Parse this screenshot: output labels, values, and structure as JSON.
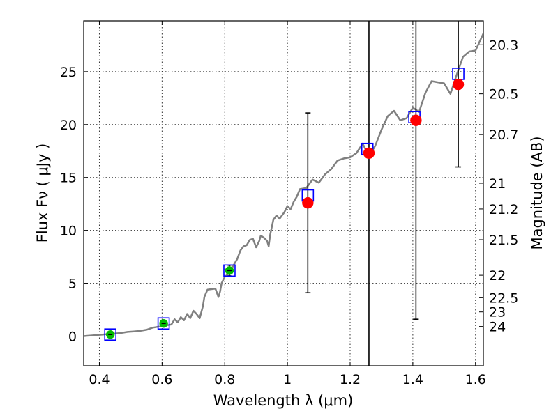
{
  "chart_data": {
    "type": "scatter",
    "xlabel": "Wavelength  λ (μm)",
    "ylabel": "Flux  Fν  ( μJy )",
    "ylabel_right": "Magnitude (AB)",
    "xlim": [
      0.35,
      1.625
    ],
    "ylim": [
      -2.8,
      29.8
    ],
    "grid": true,
    "x_ticks": [
      {
        "value": 0.4,
        "label": "0.4"
      },
      {
        "value": 0.6,
        "label": "0.6"
      },
      {
        "value": 0.8,
        "label": "0.8"
      },
      {
        "value": 1.0,
        "label": "1"
      },
      {
        "value": 1.2,
        "label": "1.2"
      },
      {
        "value": 1.4,
        "label": "1.4"
      },
      {
        "value": 1.6,
        "label": "1.6"
      }
    ],
    "y_ticks": [
      {
        "value": 0,
        "label": "0"
      },
      {
        "value": 5,
        "label": "5"
      },
      {
        "value": 10,
        "label": "10"
      },
      {
        "value": 15,
        "label": "15"
      },
      {
        "value": 20,
        "label": "20"
      },
      {
        "value": 25,
        "label": "25"
      }
    ],
    "right_ticks": [
      {
        "mag": 20.3,
        "label": "20.3"
      },
      {
        "mag": 20.5,
        "label": "20.5"
      },
      {
        "mag": 20.7,
        "label": "20.7"
      },
      {
        "mag": 21,
        "label": "21"
      },
      {
        "mag": 21.2,
        "label": "21.2"
      },
      {
        "mag": 21.5,
        "label": "21.5"
      },
      {
        "mag": 22,
        "label": "22"
      },
      {
        "mag": 22.5,
        "label": "22.5"
      },
      {
        "mag": 23,
        "label": "23"
      },
      {
        "mag": 24,
        "label": "24"
      }
    ],
    "template_spectrum": {
      "color": "#808080",
      "points": [
        [
          0.35,
          0.0
        ],
        [
          0.37,
          0.05
        ],
        [
          0.39,
          0.1
        ],
        [
          0.41,
          0.15
        ],
        [
          0.43,
          0.2
        ],
        [
          0.45,
          0.25
        ],
        [
          0.47,
          0.3
        ],
        [
          0.49,
          0.4
        ],
        [
          0.51,
          0.45
        ],
        [
          0.53,
          0.5
        ],
        [
          0.55,
          0.6
        ],
        [
          0.57,
          0.8
        ],
        [
          0.59,
          0.9
        ],
        [
          0.61,
          1.0
        ],
        [
          0.63,
          1.1
        ],
        [
          0.64,
          1.6
        ],
        [
          0.65,
          1.3
        ],
        [
          0.66,
          1.8
        ],
        [
          0.67,
          1.5
        ],
        [
          0.68,
          2.1
        ],
        [
          0.69,
          1.7
        ],
        [
          0.7,
          2.4
        ],
        [
          0.71,
          2.1
        ],
        [
          0.72,
          1.7
        ],
        [
          0.73,
          2.8
        ],
        [
          0.735,
          3.7
        ],
        [
          0.745,
          4.4
        ],
        [
          0.77,
          4.5
        ],
        [
          0.78,
          3.7
        ],
        [
          0.785,
          4.2
        ],
        [
          0.79,
          5.0
        ],
        [
          0.8,
          5.6
        ],
        [
          0.815,
          6.0
        ],
        [
          0.83,
          6.8
        ],
        [
          0.84,
          7.3
        ],
        [
          0.85,
          8.1
        ],
        [
          0.86,
          8.5
        ],
        [
          0.87,
          8.6
        ],
        [
          0.88,
          9.1
        ],
        [
          0.89,
          9.2
        ],
        [
          0.9,
          8.4
        ],
        [
          0.91,
          9.0
        ],
        [
          0.915,
          9.5
        ],
        [
          0.925,
          9.3
        ],
        [
          0.935,
          9.0
        ],
        [
          0.94,
          8.5
        ],
        [
          0.945,
          9.6
        ],
        [
          0.955,
          11.0
        ],
        [
          0.965,
          11.4
        ],
        [
          0.975,
          11.1
        ],
        [
          0.99,
          11.7
        ],
        [
          1.0,
          12.3
        ],
        [
          1.01,
          12.0
        ],
        [
          1.02,
          12.7
        ],
        [
          1.03,
          13.2
        ],
        [
          1.04,
          13.9
        ],
        [
          1.06,
          14.0
        ],
        [
          1.08,
          14.8
        ],
        [
          1.1,
          14.5
        ],
        [
          1.12,
          15.3
        ],
        [
          1.14,
          15.8
        ],
        [
          1.16,
          16.6
        ],
        [
          1.18,
          16.8
        ],
        [
          1.2,
          16.9
        ],
        [
          1.22,
          17.3
        ],
        [
          1.24,
          18.2
        ],
        [
          1.26,
          17.0
        ],
        [
          1.28,
          18.0
        ],
        [
          1.3,
          19.5
        ],
        [
          1.32,
          20.8
        ],
        [
          1.34,
          21.3
        ],
        [
          1.36,
          20.4
        ],
        [
          1.38,
          20.6
        ],
        [
          1.4,
          21.6
        ],
        [
          1.42,
          21.2
        ],
        [
          1.44,
          23.0
        ],
        [
          1.46,
          24.1
        ],
        [
          1.48,
          24.0
        ],
        [
          1.5,
          23.9
        ],
        [
          1.52,
          22.9
        ],
        [
          1.54,
          24.7
        ],
        [
          1.56,
          26.4
        ],
        [
          1.58,
          26.9
        ],
        [
          1.6,
          27.0
        ],
        [
          1.625,
          28.6
        ]
      ]
    },
    "model_photometry": {
      "marker": "open-square",
      "color": "#0000ff",
      "points": [
        {
          "x": 0.435,
          "y": 0.15
        },
        {
          "x": 0.605,
          "y": 1.2
        },
        {
          "x": 0.815,
          "y": 6.2
        },
        {
          "x": 1.065,
          "y": 13.3
        },
        {
          "x": 1.255,
          "y": 17.7
        },
        {
          "x": 1.405,
          "y": 20.7
        },
        {
          "x": 1.545,
          "y": 24.8
        }
      ]
    },
    "observed_detections": {
      "color": "#00bb00",
      "points": [
        {
          "x": 0.435,
          "y": 0.15,
          "err": 0.15
        },
        {
          "x": 0.605,
          "y": 1.2,
          "err": 0.15
        },
        {
          "x": 0.815,
          "y": 6.2,
          "err": 0.5
        }
      ]
    },
    "observed_upper": {
      "color": "#ff0000",
      "points": [
        {
          "x": 1.065,
          "y": 12.6,
          "err": 8.5
        },
        {
          "x": 1.26,
          "y": 17.3,
          "err": 35.0
        },
        {
          "x": 1.41,
          "y": 20.4,
          "err": 18.8
        },
        {
          "x": 1.545,
          "y": 23.8,
          "err": 7.8
        }
      ]
    },
    "zero_line_color": "#808080"
  }
}
